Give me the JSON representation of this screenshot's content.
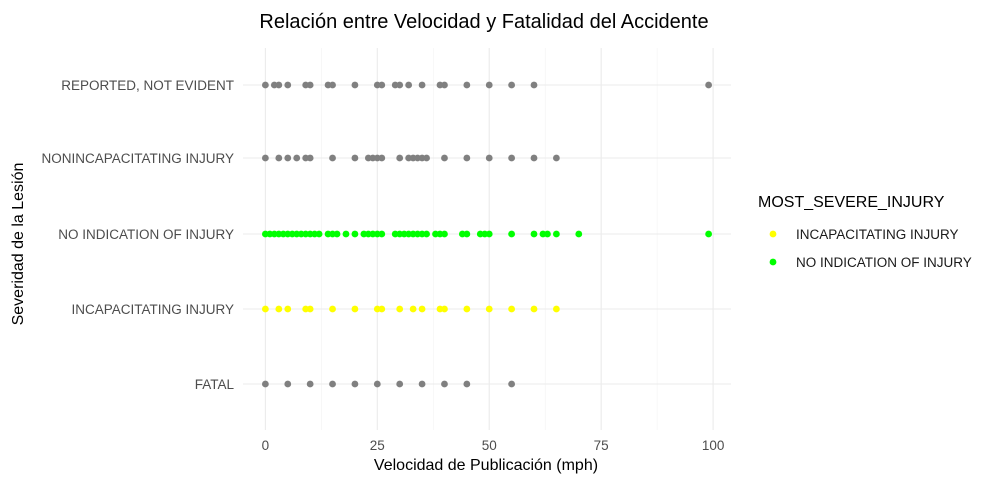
{
  "chart_data": {
    "type": "scatter",
    "title": "Relación entre Velocidad y Fatalidad del Accidente",
    "xlabel": "Velocidad de Publicación (mph)",
    "ylabel": "Severidad de la Lesión",
    "xlim": [
      -5,
      104
    ],
    "x_ticks": [
      0,
      25,
      50,
      75,
      100
    ],
    "x_tick_labels": [
      "0",
      "25",
      "50",
      "75",
      "100"
    ],
    "categories": [
      "FATAL",
      "INCAPACITATING INJURY",
      "NO INDICATION OF INJURY",
      "NONINCAPACITATING INJURY",
      "REPORTED, NOT EVIDENT"
    ],
    "grid": true,
    "legend": {
      "title": "MOST_SEVERE_INJURY",
      "position": "right",
      "entries": [
        {
          "label": "INCAPACITATING INJURY",
          "color": "#ffff00"
        },
        {
          "label": "NO INDICATION OF INJURY",
          "color": "#00ff00"
        }
      ]
    },
    "series": [
      {
        "category": "FATAL",
        "color": "#808080",
        "x": [
          0,
          5,
          10,
          15,
          20,
          25,
          30,
          35,
          40,
          45,
          55
        ]
      },
      {
        "category": "INCAPACITATING INJURY",
        "color": "#ffff00",
        "x": [
          0,
          3,
          5,
          9,
          10,
          15,
          20,
          25,
          26,
          30,
          33,
          35,
          39,
          40,
          45,
          50,
          55,
          60,
          65
        ]
      },
      {
        "category": "NO INDICATION OF INJURY",
        "color": "#00ff00",
        "x": [
          0,
          1,
          2,
          3,
          4,
          5,
          6,
          7,
          8,
          9,
          10,
          11,
          12,
          14,
          15,
          16,
          18,
          20,
          22,
          23,
          24,
          25,
          26,
          29,
          30,
          31,
          32,
          33,
          34,
          35,
          36,
          38,
          39,
          40,
          44,
          45,
          48,
          49,
          50,
          55,
          60,
          62,
          63,
          65,
          70,
          99
        ]
      },
      {
        "category": "NONINCAPACITATING INJURY",
        "color": "#808080",
        "x": [
          0,
          3,
          5,
          7,
          9,
          10,
          15,
          20,
          23,
          24,
          25,
          26,
          30,
          32,
          33,
          34,
          35,
          36,
          40,
          45,
          50,
          55,
          60,
          65
        ]
      },
      {
        "category": "REPORTED, NOT EVIDENT",
        "color": "#808080",
        "x": [
          0,
          2,
          3,
          5,
          9,
          10,
          14,
          15,
          20,
          25,
          26,
          29,
          30,
          32,
          35,
          39,
          40,
          45,
          50,
          55,
          60,
          99
        ]
      }
    ]
  }
}
